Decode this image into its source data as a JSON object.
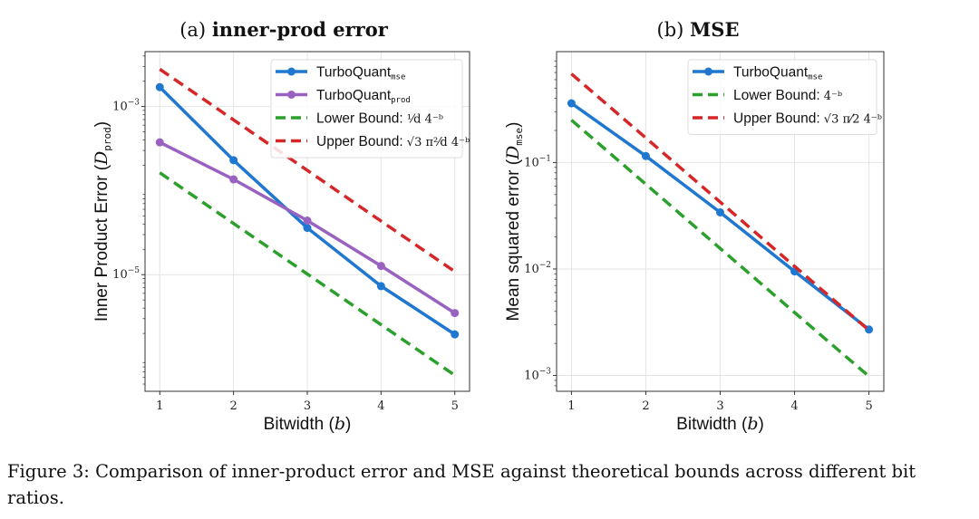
{
  "chart_data": [
    {
      "type": "line",
      "title_prefix": "(a)",
      "title": "inner-prod error",
      "xlabel": "Bitwidth",
      "xlabel_var": "b",
      "ylabel": "Inner Product Error",
      "ylabel_var": "D",
      "ylabel_sub": "prod",
      "yscale": "log",
      "ylim": [
        4.1e-07,
        0.0045
      ],
      "xlim": [
        0.8,
        5.2
      ],
      "x": [
        1,
        2,
        3,
        4,
        5
      ],
      "xticks": [
        "1",
        "2",
        "3",
        "4",
        "5"
      ],
      "yticks": [
        {
          "value": 0.001,
          "base": "10",
          "exp": "−3"
        },
        {
          "value": 1e-05,
          "base": "10",
          "exp": "−5"
        }
      ],
      "grid": true,
      "legend_placement": "top-right",
      "series": [
        {
          "name": "TurboQuant",
          "sub": "mse",
          "formula": "",
          "color": "#1f77d0",
          "style": "solid-marker",
          "values": [
            0.0017,
            0.00023,
            3.6e-05,
            7.3e-06,
            1.95e-06
          ]
        },
        {
          "name": "TurboQuant",
          "sub": "prod",
          "formula": "",
          "color": "#9a62c0",
          "style": "solid-marker",
          "values": [
            0.000375,
            0.000136,
            4.4e-05,
            1.27e-05,
            3.5e-06
          ]
        },
        {
          "name": "Lower Bound:",
          "sub": "",
          "formula": "¹⁄d 4⁻ᵇ",
          "color": "#2ca02c",
          "style": "dashed",
          "values": [
            0.000163,
            4.07e-05,
            1.02e-05,
            2.54e-06,
            6.36e-07
          ]
        },
        {
          "name": "Upper Bound:",
          "sub": "",
          "formula": "√3 π²⁄d 4⁻ᵇ",
          "color": "#d62728",
          "style": "dashed",
          "values": [
            0.00278,
            0.000695,
            0.000174,
            4.34e-05,
            1.09e-05
          ]
        }
      ]
    },
    {
      "type": "line",
      "title_prefix": "(b)",
      "title": "MSE",
      "xlabel": "Bitwidth",
      "xlabel_var": "b",
      "ylabel": "Mean squared error",
      "ylabel_var": "D",
      "ylabel_sub": "mse",
      "yscale": "log",
      "ylim": [
        0.00071,
        1.1
      ],
      "xlim": [
        0.8,
        5.2
      ],
      "x": [
        1,
        2,
        3,
        4,
        5
      ],
      "xticks": [
        "1",
        "2",
        "3",
        "4",
        "5"
      ],
      "yticks": [
        {
          "value": 0.1,
          "base": "10",
          "exp": "−1"
        },
        {
          "value": 0.01,
          "base": "10",
          "exp": "−2"
        },
        {
          "value": 0.001,
          "base": "10",
          "exp": "−3"
        }
      ],
      "grid": true,
      "legend_placement": "top-right",
      "series": [
        {
          "name": "TurboQuant",
          "sub": "mse",
          "formula": "",
          "color": "#1f77d0",
          "style": "solid-marker",
          "values": [
            0.36,
            0.115,
            0.034,
            0.0095,
            0.0027
          ]
        },
        {
          "name": "Lower Bound:",
          "sub": "",
          "formula": "4⁻ᵇ",
          "color": "#2ca02c",
          "style": "dashed",
          "values": [
            0.25,
            0.0625,
            0.0156,
            0.0039,
            0.00098
          ]
        },
        {
          "name": "Upper Bound:",
          "sub": "",
          "formula": "√3 π⁄2 4⁻ᵇ",
          "color": "#d62728",
          "style": "dashed",
          "values": [
            0.68,
            0.17,
            0.0425,
            0.0106,
            0.00266
          ]
        }
      ]
    }
  ],
  "caption": {
    "label": "Figure 3:",
    "text": "Comparison of inner-product error and MSE against theoretical bounds across different bit ratios."
  }
}
